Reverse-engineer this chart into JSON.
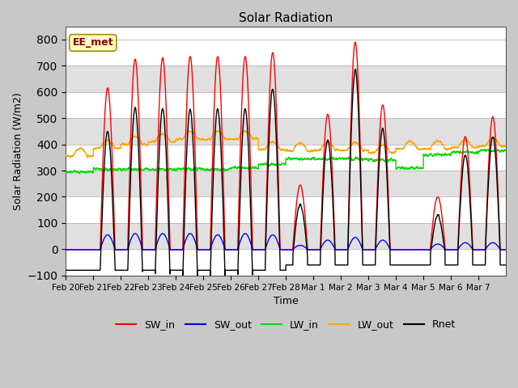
{
  "title": "Solar Radiation",
  "xlabel": "Time",
  "ylabel": "Solar Radiation (W/m2)",
  "ylim": [
    -100,
    850
  ],
  "yticks": [
    -100,
    0,
    100,
    200,
    300,
    400,
    500,
    600,
    700,
    800
  ],
  "annotation_text": "EE_met",
  "annotation_color": "#8B0000",
  "annotation_bg": "#FFFFC0",
  "fig_bg": "#C8C8C8",
  "plot_bg": "#FFFFFF",
  "band_colors": [
    "#FFFFFF",
    "#E0E0E0"
  ],
  "lines": {
    "SW_in": {
      "color": "#FF0000",
      "lw": 1.0,
      "zorder": 3
    },
    "SW_out": {
      "color": "#0000FF",
      "lw": 1.0,
      "zorder": 3
    },
    "LW_in": {
      "color": "#00DD00",
      "lw": 1.0,
      "zorder": 3
    },
    "LW_out": {
      "color": "#FFA500",
      "lw": 1.0,
      "zorder": 3
    },
    "Rnet": {
      "color": "#000000",
      "lw": 1.0,
      "zorder": 4
    }
  },
  "day_labels": [
    "Feb 20",
    "Feb 21",
    "Feb 22",
    "Feb 23",
    "Feb 24",
    "Feb 25",
    "Feb 26",
    "Feb 27",
    "Feb 28",
    "Mar 1",
    "Mar 2",
    "Mar 3",
    "Mar 4",
    "Mar 5",
    "Mar 6",
    "Mar 7"
  ],
  "n_days": 16,
  "ppd": 288,
  "SW_in_peaks": [
    0,
    615,
    725,
    730,
    735,
    735,
    735,
    750,
    245,
    515,
    790,
    550,
    0,
    200,
    430,
    505
  ],
  "SW_out_peaks": [
    0,
    55,
    60,
    60,
    60,
    55,
    60,
    55,
    15,
    35,
    45,
    35,
    0,
    20,
    25,
    25
  ],
  "LW_in_base": [
    295,
    305,
    305,
    305,
    305,
    305,
    310,
    325,
    345,
    345,
    345,
    340,
    310,
    360,
    370,
    375
  ],
  "LW_out_base": [
    355,
    385,
    400,
    410,
    420,
    420,
    420,
    380,
    375,
    378,
    378,
    368,
    383,
    383,
    388,
    393
  ],
  "night_rnet": [
    -80,
    -80,
    -80,
    -80,
    -80,
    -80,
    -80,
    -80,
    -60,
    -60,
    -60,
    -60,
    -60,
    -60,
    -60,
    -60
  ]
}
